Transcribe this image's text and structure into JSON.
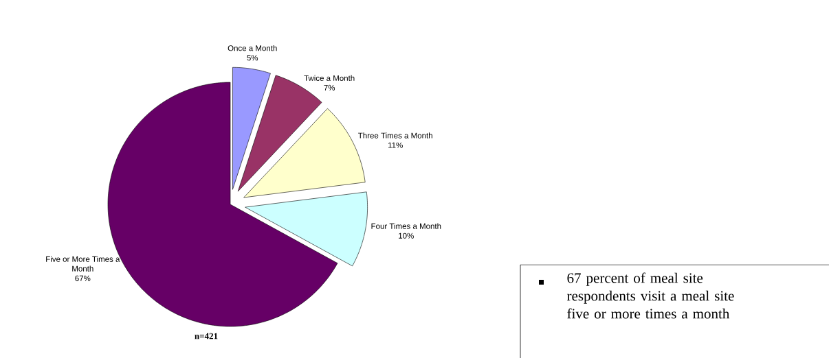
{
  "chart_data": {
    "type": "pie",
    "categories": [
      "Once a Month",
      "Twice a Month",
      "Three Times a Month",
      "Four Times a Month",
      "Five or More Times a Month"
    ],
    "values": [
      5,
      7,
      11,
      10,
      67
    ],
    "value_labels": [
      "5%",
      "7%",
      "11%",
      "10%",
      "67%"
    ],
    "colors": [
      "#9999ff",
      "#993366",
      "#ffffcc",
      "#ccffff",
      "#660066"
    ],
    "annotations": [
      "n=421",
      "67 percent of meal site respondents visit a meal site five or more times a month"
    ]
  }
}
